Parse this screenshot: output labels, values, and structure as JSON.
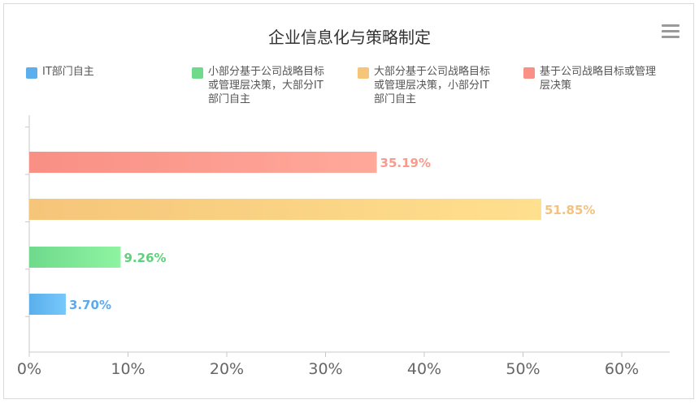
{
  "chart_data": {
    "type": "bar",
    "orientation": "horizontal",
    "title": "企业信息化与策略制定",
    "xlim": [
      0,
      60
    ],
    "x_ticks": [
      "0%",
      "10%",
      "20%",
      "30%",
      "40%",
      "50%",
      "60%"
    ],
    "series": [
      {
        "name": "IT部门自主",
        "value": 3.7,
        "label": "3.70%",
        "color_from": "#5aafec",
        "color_to": "#76c8fb",
        "text_color": "#5aaaf0",
        "legend_lines": [
          "IT部门自主"
        ]
      },
      {
        "name": "小部分基于公司战略目标或管理层决策，大部分IT部门自主",
        "value": 9.26,
        "label": "9.26%",
        "color_from": "#6fda8c",
        "color_to": "#8ef4a2",
        "text_color": "#5fd07c",
        "legend_lines": [
          "小部分基于公司战略目标",
          "或管理层决策，大部分IT",
          "部门自主"
        ]
      },
      {
        "name": "大部分基于公司战略目标或管理层决策，小部分IT部门自主",
        "value": 51.85,
        "label": "51.85%",
        "color_from": "#f5c57a",
        "color_to": "#ffe08f",
        "text_color": "#f3c27e",
        "legend_lines": [
          "大部分基于公司战略目标",
          "或管理层决策，小部分IT",
          "部门自主"
        ]
      },
      {
        "name": "基于公司战略目标或管理层决策",
        "value": 35.19,
        "label": "35.19%",
        "color_from": "#f98f85",
        "color_to": "#ffa99a",
        "text_color": "#f79b8c",
        "legend_lines": [
          "基于公司战略目标或管理",
          "层决策"
        ]
      }
    ],
    "legend_position": "top",
    "grid": false
  },
  "toolbar": {
    "menu_icon": "hamburger-menu-icon"
  }
}
